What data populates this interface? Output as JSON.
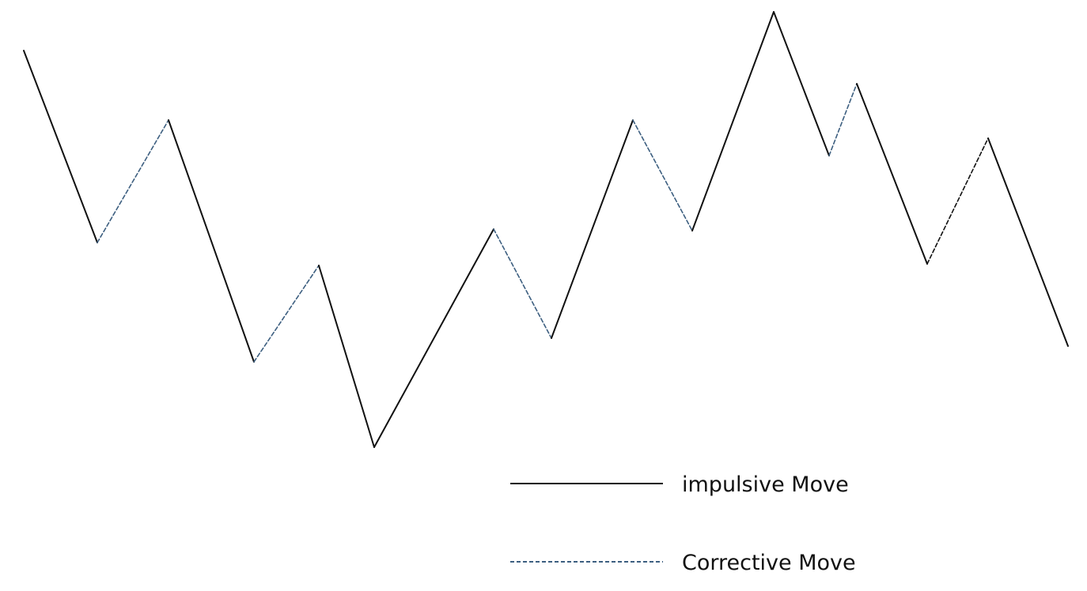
{
  "legend": {
    "impulsive_label": "impulsive Move",
    "corrective_label": "Corrective Move"
  },
  "colors": {
    "impulsive": "#111111",
    "corrective": "#3d5f80",
    "corrective_alt": "#111111",
    "background": "#ffffff"
  },
  "wave": {
    "segment_types": [
      "impulsive",
      "corrective",
      "impulsive",
      "corrective",
      "impulsive",
      "impulsive",
      "corrective",
      "impulsive",
      "corrective",
      "impulsive",
      "impulsive",
      "corrective",
      "impulsive",
      "corrective_alt",
      "impulsive"
    ]
  }
}
